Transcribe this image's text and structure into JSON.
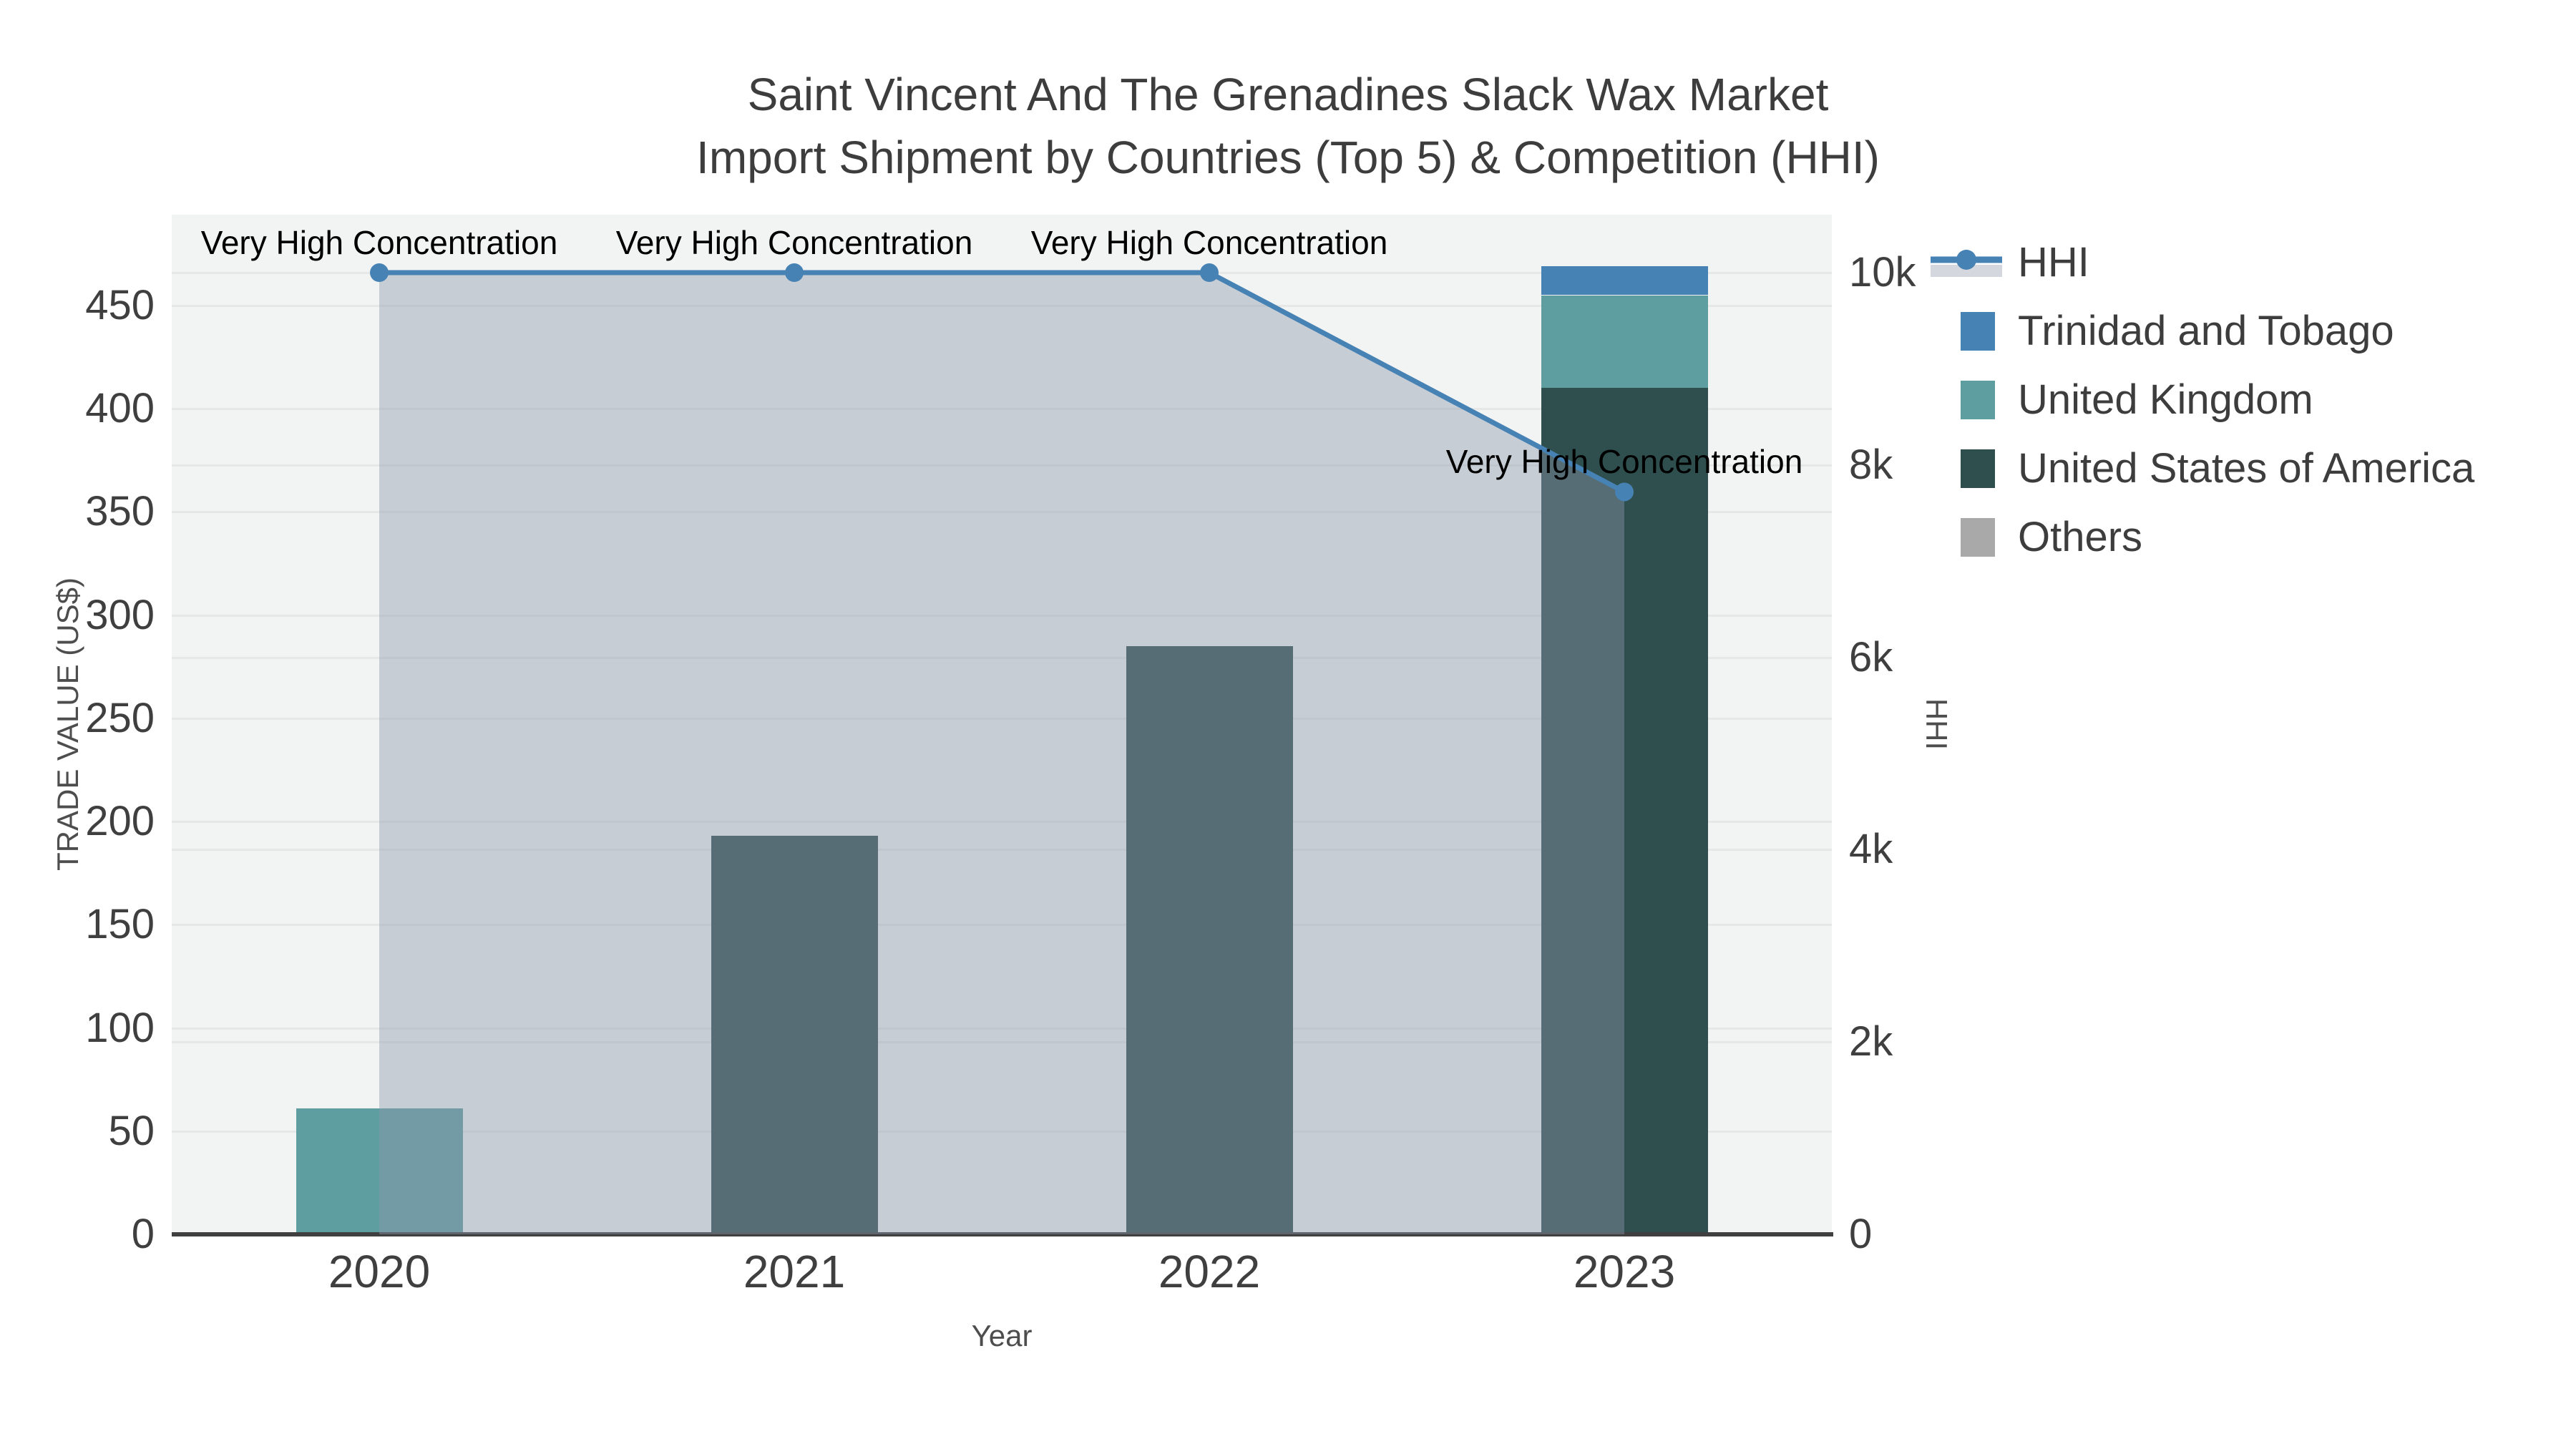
{
  "title": {
    "line1": "Saint Vincent And The Grenadines Slack Wax Market",
    "line2": "Import Shipment by Countries (Top 5) & Competition (HHI)"
  },
  "chart_data": {
    "type": "bar+line",
    "categories": [
      "2020",
      "2021",
      "2022",
      "2023"
    ],
    "x_axis": {
      "title": "Year"
    },
    "y_left": {
      "title": "TRADE VALUE (US$)",
      "ticks": [
        0,
        50,
        100,
        150,
        200,
        250,
        300,
        350,
        400,
        450
      ],
      "range": [
        0,
        494
      ]
    },
    "y_right": {
      "title": "HHI",
      "ticks": [
        "0",
        "2k",
        "4k",
        "6k",
        "8k",
        "10k"
      ],
      "tick_values": [
        0,
        2000,
        4000,
        6000,
        8000,
        10000
      ],
      "range": [
        0,
        10603
      ]
    },
    "bar_series": [
      {
        "name": "Trinidad and Tobago",
        "values": [
          0,
          0,
          0,
          14
        ]
      },
      {
        "name": "United Kingdom",
        "values": [
          61,
          0,
          0,
          45
        ]
      },
      {
        "name": "United States of America",
        "values": [
          0,
          193,
          285,
          410
        ]
      },
      {
        "name": "Others",
        "values": [
          0,
          0,
          0,
          0
        ]
      }
    ],
    "stack_order_bottom_to_top": [
      2,
      1,
      0,
      3
    ],
    "line_series": {
      "name": "HHI",
      "axis": "right",
      "values": [
        10000,
        10000,
        10000,
        7720
      ]
    },
    "annotations": [
      {
        "text": "Very High Concentration",
        "category_index": 0,
        "value": 10000
      },
      {
        "text": "Very High Concentration",
        "category_index": 1,
        "value": 10000
      },
      {
        "text": "Very High Concentration",
        "category_index": 2,
        "value": 10000
      },
      {
        "text": "Very High Concentration",
        "category_index": 3,
        "value": 7720
      }
    ],
    "grid": true,
    "legend_position": "top-right"
  },
  "legend": {
    "items": [
      {
        "label": "HHI",
        "type": "line"
      },
      {
        "label": "Trinidad and Tobago",
        "type": "swatch"
      },
      {
        "label": "United Kingdom",
        "type": "swatch"
      },
      {
        "label": "United States of America",
        "type": "swatch"
      },
      {
        "label": "Others",
        "type": "swatch"
      }
    ]
  },
  "colors": {
    "Trinidad and Tobago": "#4682b4",
    "United Kingdom": "#5f9ea0",
    "United States of America": "#2f4f4f",
    "Others": "#a9a9a9",
    "hhi_line": "#4682b4",
    "hhi_marker": "#4682b4",
    "hhi_fill": "rgba(141,152,171,0.42)",
    "legend_fill_band": "#d4d8de",
    "plot_background": "#f2f3f3",
    "gridline": "#e6e7e7",
    "axis_line": "#404040"
  }
}
